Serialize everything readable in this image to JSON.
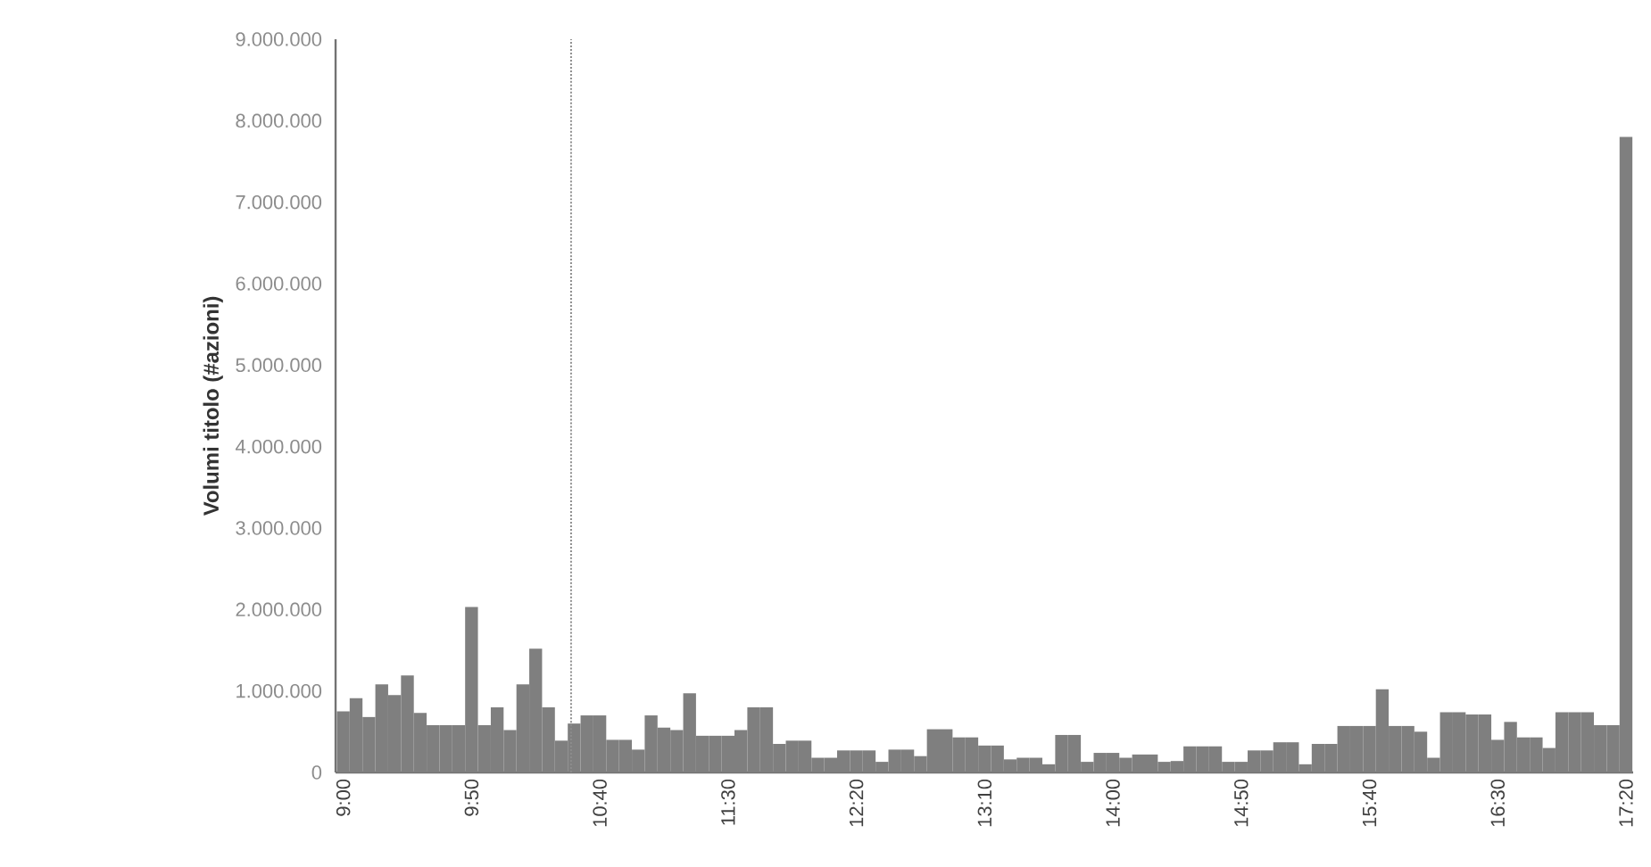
{
  "chart_data": {
    "type": "bar",
    "ylabel": "Volumi titolo (#azioni)",
    "color": "#7f7f7f",
    "x": [
      9,
      9.0833,
      9.1667,
      9.25,
      9.3333,
      9.4167,
      9.5,
      9.5833,
      9.6667,
      9.75,
      9.8333,
      9.9167,
      10,
      10.0833,
      10.1667,
      10.25,
      10.3333,
      10.4167,
      10.5,
      10.5833,
      10.6667,
      10.75,
      10.8333,
      10.9167,
      11,
      11.0833,
      11.1667,
      11.25,
      11.3333,
      11.4167,
      11.5,
      11.5833,
      11.6667,
      11.75,
      11.8333,
      11.9167,
      12,
      12.0833,
      12.1667,
      12.25,
      12.3333,
      12.4167,
      12.5,
      12.5833,
      12.6667,
      12.75,
      12.8333,
      12.9167,
      13,
      13.0833,
      13.1667,
      13.25,
      13.3333,
      13.4167,
      13.5,
      13.5833,
      13.6667,
      13.75,
      13.8333,
      13.9167,
      14,
      14.0833,
      14.1667,
      14.25,
      14.3333,
      14.4167,
      14.5,
      14.5833,
      14.6667,
      14.75,
      14.8333,
      14.9167,
      15,
      15.0833,
      15.1667,
      15.25,
      15.3333,
      15.4167,
      15.5,
      15.5833,
      15.6667,
      15.75,
      15.8333,
      15.9167,
      16,
      16.0833,
      16.1667,
      16.25,
      16.3333,
      16.4167,
      16.5,
      16.5833,
      16.6667,
      16.75,
      16.8333,
      16.9167,
      17,
      17.0833,
      17.1667,
      17.25,
      17.3333
    ],
    "values": [
      750000,
      910000,
      680000,
      1080000,
      950000,
      1190000,
      730000,
      580000,
      580000,
      580000,
      2030000,
      580000,
      800000,
      520000,
      1080000,
      1520000,
      800000,
      390000,
      600000,
      700000,
      700000,
      400000,
      400000,
      280000,
      700000,
      550000,
      520000,
      970000,
      450000,
      450000,
      450000,
      520000,
      800000,
      800000,
      350000,
      390000,
      390000,
      180000,
      180000,
      270000,
      270000,
      270000,
      130000,
      280000,
      280000,
      200000,
      530000,
      530000,
      430000,
      430000,
      330000,
      330000,
      160000,
      180000,
      180000,
      100000,
      460000,
      460000,
      130000,
      240000,
      240000,
      180000,
      220000,
      220000,
      130000,
      140000,
      320000,
      320000,
      320000,
      130000,
      130000,
      270000,
      270000,
      370000,
      370000,
      100000,
      350000,
      350000,
      570000,
      570000,
      570000,
      1020000,
      570000,
      570000,
      500000,
      180000,
      740000,
      740000,
      710000,
      710000,
      400000,
      620000,
      430000,
      430000,
      300000,
      740000,
      740000,
      740000,
      580000,
      580000,
      7800000
    ],
    "xlim": [
      8.95,
      17.38
    ],
    "xticks": [
      {
        "value": 9,
        "label": "9:00"
      },
      {
        "value": 9.8333,
        "label": "9:50"
      },
      {
        "value": 10.6667,
        "label": "10:40"
      },
      {
        "value": 11.5,
        "label": "11:30"
      },
      {
        "value": 12.3333,
        "label": "12:20"
      },
      {
        "value": 13.1667,
        "label": "13:10"
      },
      {
        "value": 14,
        "label": "14:00"
      },
      {
        "value": 14.8333,
        "label": "14:50"
      },
      {
        "value": 15.6667,
        "label": "15:40"
      },
      {
        "value": 16.5,
        "label": "16:30"
      },
      {
        "value": 17.3333,
        "label": "17:20"
      }
    ],
    "ylim": [
      0,
      9000000
    ],
    "yticks": [
      0,
      {
        "value": 1000000,
        "label": "1.000.000"
      },
      {
        "value": 2000000,
        "label": "2.000.000"
      },
      {
        "value": 3000000,
        "label": "3.000.000"
      },
      {
        "value": 4000000,
        "label": "4.000.000"
      },
      {
        "value": 5000000,
        "label": "5.000.000"
      },
      {
        "value": 6000000,
        "label": "6.000.000"
      },
      {
        "value": 7000000,
        "label": "7.000.000"
      },
      {
        "value": 8000000,
        "label": "8.000.000"
      },
      {
        "value": 9000000,
        "label": "9.000.000"
      }
    ],
    "ref_lines": [
      {
        "axis": "x",
        "value": 10.48,
        "color": "#8c8c8c",
        "line_style": "dotted"
      }
    ],
    "xlabel": null
  }
}
